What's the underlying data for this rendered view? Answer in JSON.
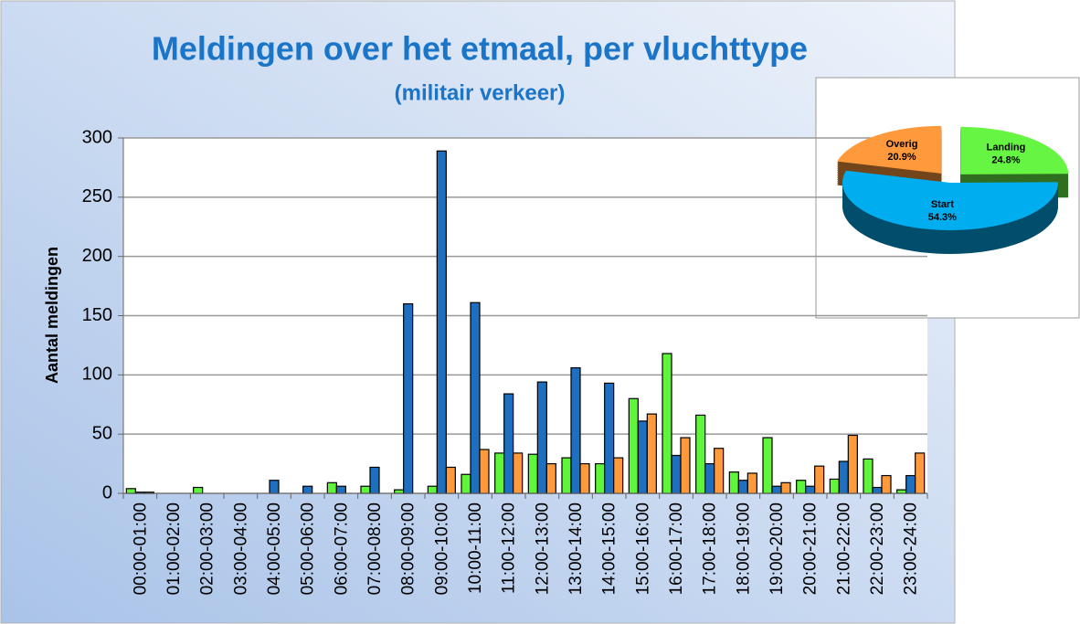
{
  "chart_data": [
    {
      "type": "bar",
      "title": "Meldingen over het etmaal, per vluchttype",
      "subtitle": "(militair verkeer)",
      "y_label": "Aantal meldingen",
      "categories": [
        "00:00-01:00",
        "01:00-02:00",
        "02:00-03:00",
        "03:00-04:00",
        "04:00-05:00",
        "05:00-06:00",
        "06:00-07:00",
        "07:00-08:00",
        "08:00-09:00",
        "09:00-10:00",
        "10:00-11:00",
        "11:00-12:00",
        "12:00-13:00",
        "13:00-14:00",
        "14:00-15:00",
        "15:00-16:00",
        "16:00-17:00",
        "17:00-18:00",
        "18:00-19:00",
        "19:00-20:00",
        "20:00-21:00",
        "21:00-22:00",
        "22:00-23:00",
        "23:00-24:00"
      ],
      "series": [
        {
          "color": "#5ef53a",
          "values": [
            4,
            0,
            5,
            0,
            0,
            0,
            9,
            6,
            3,
            6,
            16,
            34,
            33,
            30,
            25,
            80,
            118,
            66,
            18,
            47,
            11,
            12,
            29,
            3
          ]
        },
        {
          "color": "#1f6fc0",
          "values": [
            1,
            0,
            0,
            0,
            11,
            6,
            6,
            22,
            160,
            289,
            161,
            84,
            94,
            106,
            93,
            61,
            32,
            25,
            11,
            6,
            6,
            27,
            5,
            15
          ]
        },
        {
          "color": "#ff9a3c",
          "values": [
            1,
            0,
            0,
            0,
            0,
            0,
            0,
            0,
            0,
            22,
            37,
            34,
            25,
            25,
            30,
            67,
            47,
            38,
            17,
            9,
            23,
            49,
            15,
            34
          ]
        }
      ],
      "ylim": [
        0,
        300
      ],
      "yticks": [
        0,
        50,
        100,
        150,
        200,
        250,
        300
      ],
      "grid": true
    },
    {
      "type": "pie",
      "categories": [
        "Landing",
        "Start",
        "Overig"
      ],
      "values": [
        24.8,
        54.3,
        20.9
      ],
      "value_labels": [
        "24.8%",
        "54.3%",
        "20.9%"
      ],
      "colors": [
        "#66f542",
        "#00aeef",
        "#ff9a3c"
      ]
    }
  ]
}
